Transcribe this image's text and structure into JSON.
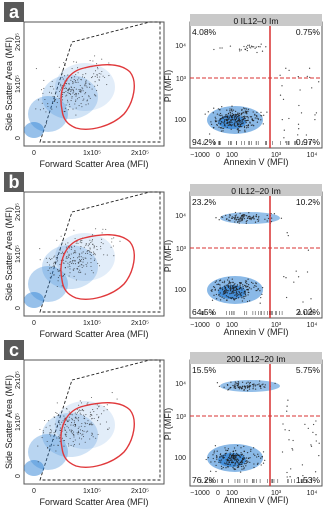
{
  "panels": [
    {
      "letter": "a",
      "scatter": {
        "ylabel": "Side Scatter Area (MFI)",
        "xlabel": "Forward Scatter Area (MFI)",
        "xticks": [
          "0",
          "1x10⁵",
          "2x10⁵"
        ],
        "yticks": [
          "0",
          "1x10⁵",
          "2x10⁵"
        ]
      },
      "flow": {
        "title": "0 IL12–0 Im",
        "ylabel": "PI (MFI)",
        "xlabel": "Annexin V (MFI)",
        "xticks": [
          "−1000",
          "0",
          "100",
          "10³",
          "10⁴"
        ],
        "yticks": [
          "100",
          "10³",
          "10⁴"
        ],
        "q_ul": "4.08%",
        "q_ur": "0.75%",
        "q_ll": "94.2%",
        "q_lr": "0.97%"
      }
    },
    {
      "letter": "b",
      "scatter": {
        "ylabel": "Side Scatter Area (MFI)",
        "xlabel": "Forward Scatter Area (MFI)",
        "xticks": [
          "0",
          "1x10⁵",
          "2x10⁵"
        ],
        "yticks": [
          "0",
          "1x10⁵",
          "2x10⁵"
        ]
      },
      "flow": {
        "title": "0 IL12–20 Im",
        "ylabel": "PI (MFI)",
        "xlabel": "Annexin V (MFI)",
        "xticks": [
          "−1000",
          "0",
          "100",
          "10³",
          "10⁴"
        ],
        "yticks": [
          "100",
          "10³",
          "10⁴"
        ],
        "q_ul": "23.2%",
        "q_ur": "10.2%",
        "q_ll": "64.5%",
        "q_lr": "2.02%"
      }
    },
    {
      "letter": "c",
      "scatter": {
        "ylabel": "Side Scatter Area (MFI)",
        "xlabel": "Forward Scatter Area (MFI)",
        "xticks": [
          "0",
          "1x10⁵",
          "2x10⁵"
        ],
        "yticks": [
          "0",
          "1x10⁵",
          "2x10⁵"
        ]
      },
      "flow": {
        "title": "200 IL12–20 Im",
        "ylabel": "PI (MFI)",
        "xlabel": "Annexin V (MFI)",
        "xticks": [
          "−1000",
          "0",
          "100",
          "10³",
          "10⁴"
        ],
        "yticks": [
          "100",
          "10³",
          "10⁴"
        ],
        "q_ul": "15.5%",
        "q_ur": "5.75%",
        "q_ll": "76.2%",
        "q_lr": "1.53%"
      }
    }
  ],
  "colors": {
    "gate": "#e0383b",
    "density": "#2a7fd4",
    "dots": "#1a1a1a",
    "title_bar": "#c9c9c9",
    "letter_bg": "#5a5a5a"
  },
  "chart_data": [
    {
      "type": "scatter",
      "panel": "a",
      "title": "0 IL12–0 Im",
      "xlabel": "Annexin V (MFI)",
      "ylabel": "PI (MFI)",
      "x_scale": "biexponential",
      "y_scale": "biexponential",
      "quadrants": {
        "upper_left": 4.08,
        "upper_right": 0.75,
        "lower_left": 94.2,
        "lower_right": 0.97
      }
    },
    {
      "type": "scatter",
      "panel": "b",
      "title": "0 IL12–20 Im",
      "xlabel": "Annexin V (MFI)",
      "ylabel": "PI (MFI)",
      "x_scale": "biexponential",
      "y_scale": "biexponential",
      "quadrants": {
        "upper_left": 23.2,
        "upper_right": 10.2,
        "lower_left": 64.5,
        "lower_right": 2.02
      }
    },
    {
      "type": "scatter",
      "panel": "c",
      "title": "200 IL12–20 Im",
      "xlabel": "Annexin V (MFI)",
      "ylabel": "PI (MFI)",
      "x_scale": "biexponential",
      "y_scale": "biexponential",
      "quadrants": {
        "upper_left": 15.5,
        "upper_right": 5.75,
        "lower_left": 76.2,
        "lower_right": 1.53
      }
    }
  ]
}
